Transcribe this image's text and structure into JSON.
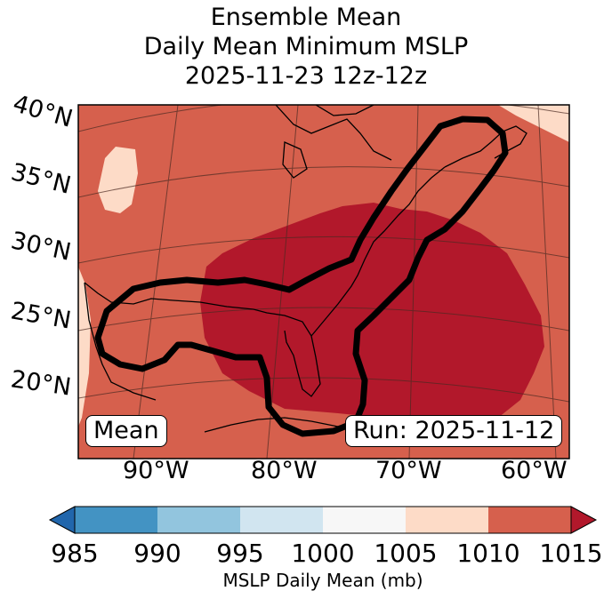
{
  "title": {
    "line1": "Ensemble Mean",
    "line2": "Daily Mean Minimum MSLP",
    "line3": "2025-11-23 12z-12z"
  },
  "map": {
    "lat_labels": [
      "40°N",
      "35°N",
      "30°N",
      "25°N",
      "20°N"
    ],
    "lon_labels": [
      "90°W",
      "80°W",
      "70°W",
      "60°W"
    ],
    "mean_box": "Mean",
    "run_box": "Run: 2025-11-12",
    "colors": {
      "bg": "#d6604d",
      "low": "#b2182b",
      "high": "#fddbc7",
      "land_outline": "#000000",
      "contour": "#000000"
    }
  },
  "colorbar": {
    "ticks": [
      "985",
      "990",
      "995",
      "1000",
      "1005",
      "1010",
      "1015"
    ],
    "label": "MSLP Daily Mean (mb)",
    "colors": [
      "#2166ac",
      "#4393c3",
      "#92c5de",
      "#d1e5f0",
      "#f7f7f7",
      "#fddbc7",
      "#d6604d",
      "#b2182b"
    ]
  }
}
